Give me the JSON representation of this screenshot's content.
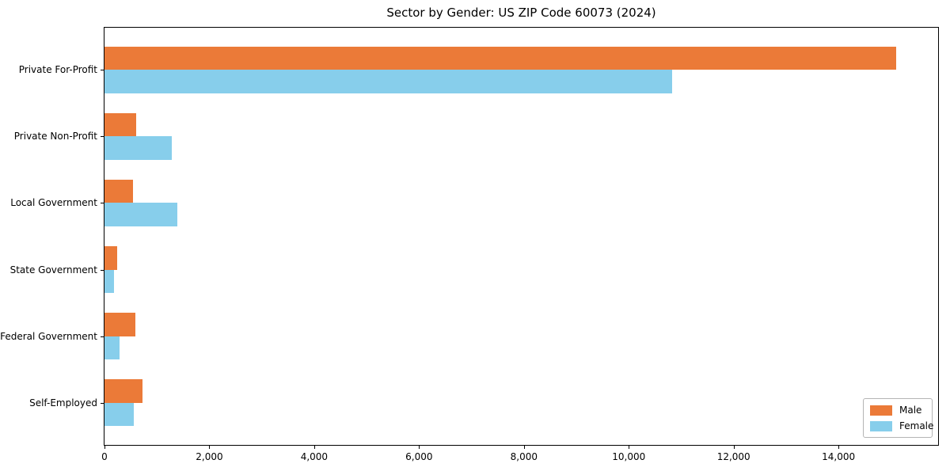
{
  "page": {
    "background": "#ffffff",
    "text_color": "#000000",
    "axis_color": "#000000",
    "legend_border_color": "#b4b4b4"
  },
  "chart_data": {
    "type": "bar",
    "orientation": "horizontal",
    "title": "Sector by Gender: US ZIP Code 60073 (2024)",
    "categories": [
      "Private For-Profit",
      "Private Non-Profit",
      "Local Government",
      "State Government",
      "Federal Government",
      "Self-Employed"
    ],
    "series": [
      {
        "name": "Male",
        "color": "#EB7A38",
        "values": [
          15100,
          600,
          550,
          245,
          590,
          730
        ]
      },
      {
        "name": "Female",
        "color": "#87CEEB",
        "values": [
          10820,
          1280,
          1390,
          185,
          290,
          560
        ]
      }
    ],
    "xlabel": "",
    "ylabel": "",
    "xlim": [
      0,
      15900
    ],
    "xticks": [
      0,
      2000,
      4000,
      6000,
      8000,
      10000,
      12000,
      14000
    ],
    "xtick_labels": [
      "0",
      "2,000",
      "4,000",
      "6,000",
      "8,000",
      "10,000",
      "12,000",
      "14,000"
    ],
    "grid": false,
    "legend_position": "lower right",
    "bar_group_order": "male-above-female"
  }
}
